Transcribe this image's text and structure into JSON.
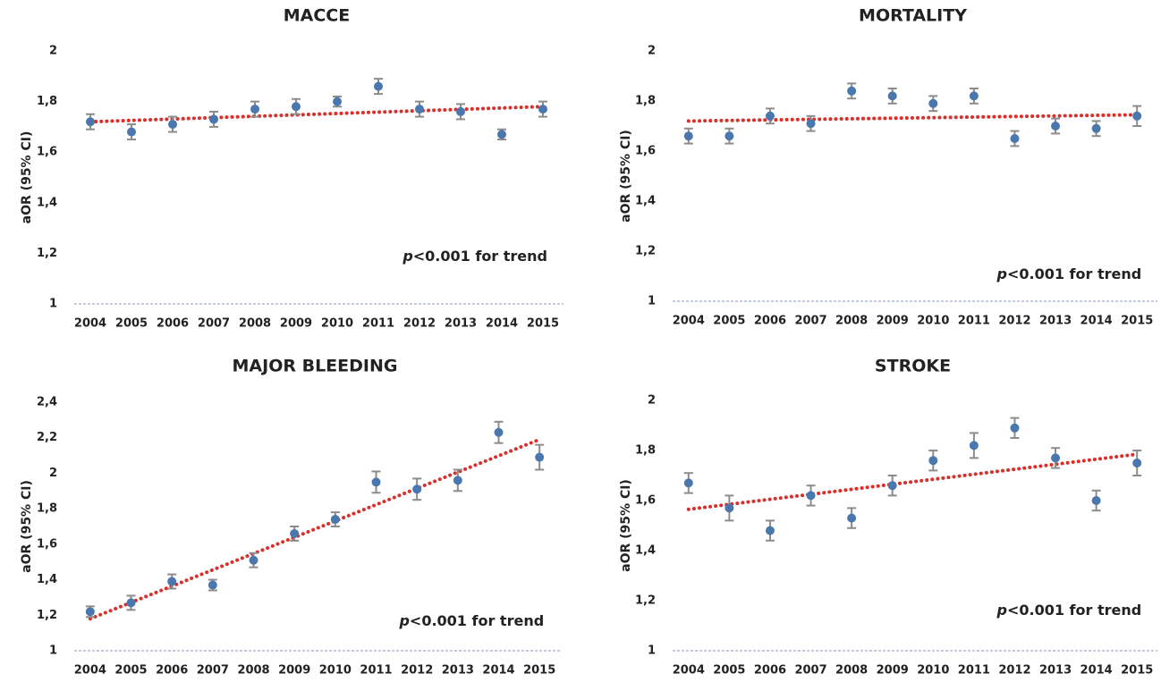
{
  "chart_data": [
    {
      "type": "scatter",
      "title": "MACCE",
      "y_label": "aOR (95% CI)",
      "categories": [
        "2004",
        "2005",
        "2006",
        "2007",
        "2008",
        "2009",
        "2010",
        "2011",
        "2012",
        "2013",
        "2014",
        "2015"
      ],
      "values": [
        1.72,
        1.68,
        1.71,
        1.73,
        1.77,
        1.78,
        1.8,
        1.86,
        1.77,
        1.76,
        1.67,
        1.77
      ],
      "errors": [
        0.03,
        0.03,
        0.03,
        0.03,
        0.03,
        0.03,
        0.02,
        0.03,
        0.03,
        0.03,
        0.02,
        0.03
      ],
      "color": "#4a78ae",
      "error_color": "#8c8c8c",
      "trend": {
        "color": "#d9302c",
        "values": [
          1.72,
          1.78
        ]
      },
      "ylim": [
        1,
        2
      ],
      "yticks": [
        1,
        {
          "value": 1.2,
          "label": "1,2"
        },
        {
          "value": 1.4,
          "label": "1,4"
        },
        {
          "value": 1.6,
          "label": "1,6"
        },
        {
          "value": 1.8,
          "label": "1,8"
        },
        2
      ],
      "annotation": "p<0.001 for trend"
    },
    {
      "type": "scatter",
      "title": "MORTALITY",
      "y_label": "aOR (95% CI)",
      "categories": [
        "2004",
        "2005",
        "2006",
        "2007",
        "2008",
        "2009",
        "2010",
        "2011",
        "2012",
        "2013",
        "2014",
        "2015"
      ],
      "values": [
        1.66,
        1.66,
        1.74,
        1.71,
        1.84,
        1.82,
        1.79,
        1.82,
        1.65,
        1.7,
        1.69,
        1.74
      ],
      "errors": [
        0.03,
        0.03,
        0.03,
        0.03,
        0.03,
        0.03,
        0.03,
        0.03,
        0.03,
        0.03,
        0.03,
        0.04
      ],
      "color": "#4a78ae",
      "error_color": "#8c8c8c",
      "trend": {
        "color": "#d9302c",
        "values": [
          1.72,
          1.745
        ]
      },
      "ylim": [
        1,
        2
      ],
      "yticks": [
        1,
        {
          "value": 1.2,
          "label": "1,2"
        },
        {
          "value": 1.4,
          "label": "1,4"
        },
        {
          "value": 1.6,
          "label": "1,6"
        },
        {
          "value": 1.8,
          "label": "1,8"
        },
        2
      ],
      "annotation": "p<0.001 for trend"
    },
    {
      "type": "scatter",
      "title": "MAJOR BLEEDING",
      "y_label": "aOR (95% CI)",
      "categories": [
        "2004",
        "2005",
        "2006",
        "2007",
        "2008",
        "2009",
        "2010",
        "2011",
        "2012",
        "2013",
        "2014",
        "2015"
      ],
      "values": [
        1.22,
        1.27,
        1.39,
        1.37,
        1.51,
        1.66,
        1.74,
        1.95,
        1.91,
        1.96,
        2.23,
        2.09
      ],
      "errors": [
        0.03,
        0.04,
        0.04,
        0.03,
        0.04,
        0.04,
        0.04,
        0.06,
        0.06,
        0.06,
        0.06,
        0.07
      ],
      "color": "#4a78ae",
      "error_color": "#8c8c8c",
      "trend": {
        "color": "#d9302c",
        "values": [
          1.18,
          2.19
        ]
      },
      "ylim": [
        1,
        2.4
      ],
      "yticks": [
        1,
        {
          "value": 1.2,
          "label": "1,2"
        },
        {
          "value": 1.4,
          "label": "1,4"
        },
        {
          "value": 1.6,
          "label": "1,6"
        },
        {
          "value": 1.8,
          "label": "1,8"
        },
        2,
        {
          "value": 2.2,
          "label": "2,2"
        },
        {
          "value": 2.4,
          "label": "2,4"
        }
      ],
      "annotation": "p<0.001 for trend"
    },
    {
      "type": "scatter",
      "title": "STROKE",
      "y_label": "aOR (95% CI)",
      "categories": [
        "2004",
        "2005",
        "2006",
        "2007",
        "2008",
        "2009",
        "2010",
        "2011",
        "2012",
        "2013",
        "2014",
        "2015"
      ],
      "values": [
        1.67,
        1.57,
        1.48,
        1.62,
        1.53,
        1.66,
        1.76,
        1.82,
        1.89,
        1.77,
        1.6,
        1.75
      ],
      "errors": [
        0.04,
        0.05,
        0.04,
        0.04,
        0.04,
        0.04,
        0.04,
        0.05,
        0.04,
        0.04,
        0.04,
        0.05
      ],
      "color": "#4a78ae",
      "error_color": "#8c8c8c",
      "trend": {
        "color": "#d9302c",
        "values": [
          1.565,
          1.785
        ]
      },
      "ylim": [
        1,
        2
      ],
      "yticks": [
        1,
        {
          "value": 1.2,
          "label": "1,2"
        },
        {
          "value": 1.4,
          "label": "1,4"
        },
        {
          "value": 1.6,
          "label": "1,6"
        },
        {
          "value": 1.8,
          "label": "1,8"
        },
        2
      ],
      "annotation": "p<0.001 for trend"
    }
  ]
}
